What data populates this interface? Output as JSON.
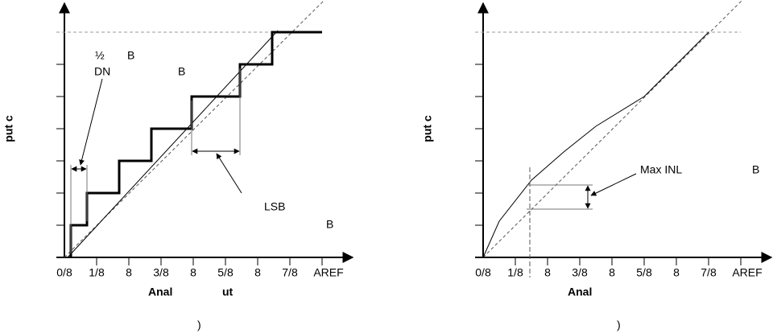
{
  "left": {
    "y_axis_label": "put c",
    "x_axis_label_1": "Anal",
    "x_axis_label_2": "ut",
    "x_ticks": [
      "0/8",
      "1/8",
      "8",
      "3/8",
      "8",
      "5/8",
      "8",
      "7/8",
      "AREF"
    ],
    "annotations": {
      "half": "½",
      "half_b": "B",
      "dnl": "DN",
      "dnl_b": "B",
      "lsb": "LSB",
      "lsb_b": "B"
    },
    "caption": ")"
  },
  "right": {
    "y_axis_label": "put c",
    "x_axis_label": "Anal",
    "x_ticks": [
      "0/8",
      "1/8",
      "8",
      "3/8",
      "8",
      "5/8",
      "8",
      "7/8",
      "AREF"
    ],
    "annotations": {
      "inl": "Max INL",
      "inl_b": "B"
    },
    "caption": ")"
  }
}
